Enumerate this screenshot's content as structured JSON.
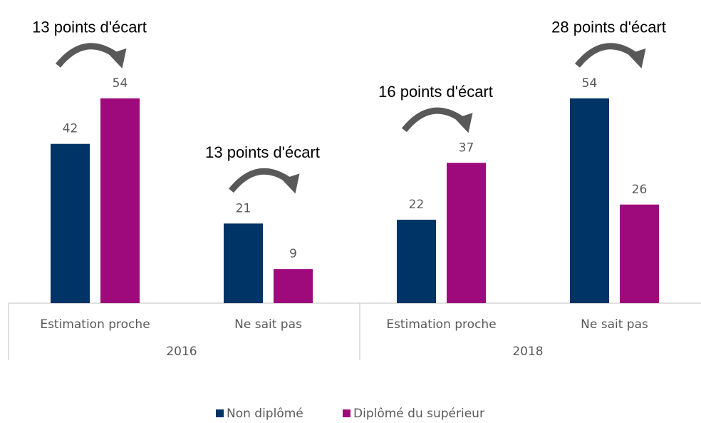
{
  "chart_data": {
    "type": "bar",
    "groups": [
      "2016",
      "2018"
    ],
    "categories": [
      "Estimation proche",
      "Ne sait pas",
      "Estimation proche",
      "Ne sait pas"
    ],
    "series": [
      {
        "name": "Non diplômé",
        "color": "#003366",
        "values": [
          42,
          21,
          22,
          54
        ]
      },
      {
        "name": "Diplômé du supérieur",
        "color": "#9e0a7c",
        "values": [
          54,
          9,
          37,
          26
        ]
      }
    ],
    "annotations": [
      "13 points d'écart",
      "13 points d'écart",
      "16 points d'écart",
      "28 points d'écart"
    ],
    "ylim": [
      0,
      60
    ]
  }
}
